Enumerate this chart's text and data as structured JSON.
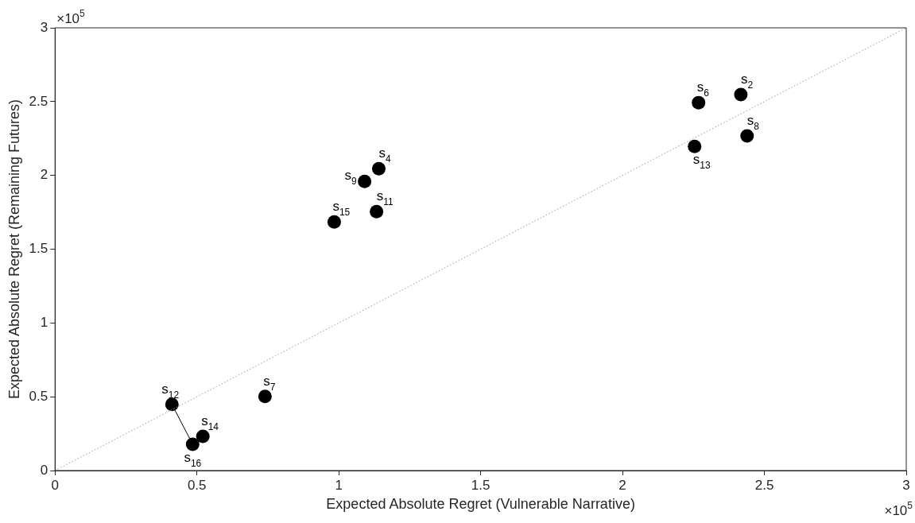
{
  "chart_data": {
    "type": "scatter",
    "xlabel": "Expected Absolute Regret (Vulnerable Narrative)",
    "ylabel": "Expected Absolute Regret (Remaining Futures)",
    "xlim": [
      0,
      3
    ],
    "ylim": [
      0,
      3
    ],
    "xticks": [
      0,
      0.5,
      1,
      1.5,
      2,
      2.5,
      3
    ],
    "yticks": [
      0,
      0.5,
      1,
      1.5,
      2,
      2.5,
      3
    ],
    "grid": false,
    "legend": false,
    "marker": "circle",
    "series": [
      {
        "type": "line",
        "color": "#999999",
        "line_style": "dotted",
        "marker": "none",
        "x": [
          0,
          3
        ],
        "values": [
          0,
          3
        ]
      },
      {
        "type": "line",
        "color": "#000000",
        "line_style": "solid",
        "marker": "none",
        "x": [
          0.412,
          0.485
        ],
        "values": [
          0.448,
          0.178
        ]
      },
      {
        "color": "#000000",
        "x": [
          2.417,
          1.141,
          2.268,
          0.74,
          2.439,
          1.091,
          1.133,
          0.412,
          2.254,
          0.521,
          0.984,
          0.485
        ],
        "values": [
          2.547,
          2.045,
          2.493,
          0.502,
          2.267,
          1.959,
          1.754,
          0.448,
          2.196,
          0.232,
          1.684,
          0.178
        ]
      }
    ],
    "annotations": [
      {
        "text": "s$_{2}$",
        "x": 2.417,
        "y": 2.547
      },
      {
        "text": "s$_{4}$",
        "x": 1.141,
        "y": 2.045
      },
      {
        "text": "s$_{6}$",
        "x": 2.268,
        "y": 2.493
      },
      {
        "text": "s$_{7}$",
        "x": 0.74,
        "y": 0.502
      },
      {
        "text": "s$_{8}$",
        "x": 2.439,
        "y": 2.267
      },
      {
        "text": "s$_{9}$",
        "x": 1.091,
        "y": 1.959
      },
      {
        "text": "s$_{11}$",
        "x": 1.133,
        "y": 1.754
      },
      {
        "text": "s$_{12}$",
        "x": 0.412,
        "y": 0.448
      },
      {
        "text": "s$_{13}$",
        "x": 2.254,
        "y": 2.196
      },
      {
        "text": "s$_{14}$",
        "x": 0.521,
        "y": 0.232
      },
      {
        "text": "s$_{15}$",
        "x": 0.984,
        "y": 1.684
      },
      {
        "text": "s$_{16}$",
        "x": 0.485,
        "y": 0.178
      },
      "×10$^{5}$",
      "×10$^{5}$"
    ]
  }
}
